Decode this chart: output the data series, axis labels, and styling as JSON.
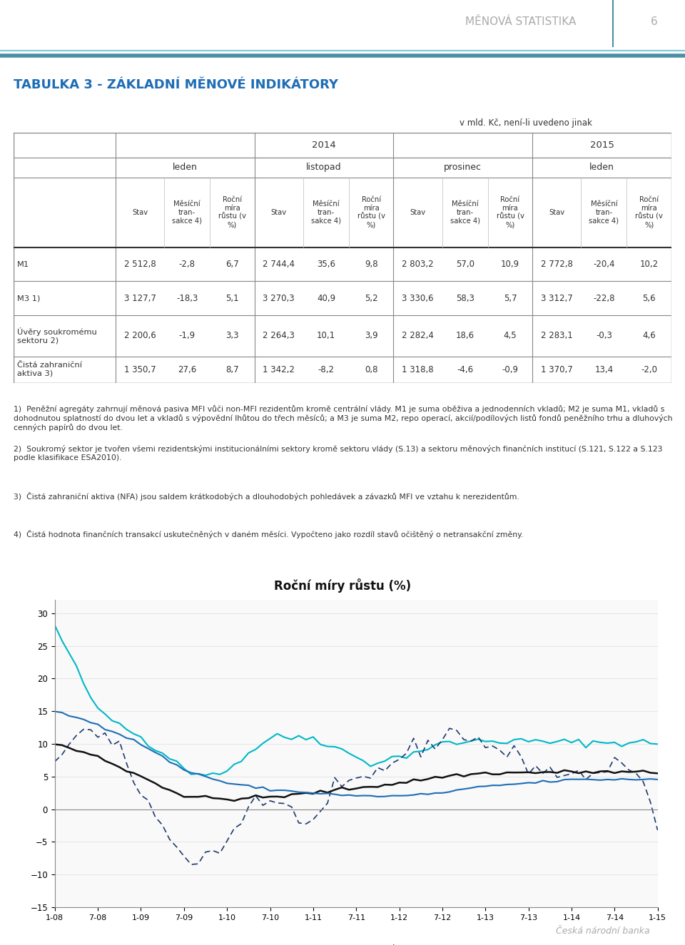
{
  "page_title": "MĚNOVÁ STATISTIKA",
  "page_number": "6",
  "table_title": "TABULKA 3 - ZÁKLADNÍ MĚNOVÉ INDIKÁTORY",
  "subtitle": "v mld. Kč, není-li uvedeno jinak",
  "rows": [
    [
      "M1",
      "2 512,8",
      "-2,8",
      "6,7",
      "2 744,4",
      "35,6",
      "9,8",
      "2 803,2",
      "57,0",
      "10,9",
      "2 772,8",
      "-20,4",
      "10,2"
    ],
    [
      "M3 1)",
      "3 127,7",
      "-18,3",
      "5,1",
      "3 270,3",
      "40,9",
      "5,2",
      "3 330,6",
      "58,3",
      "5,7",
      "3 312,7",
      "-22,8",
      "5,6"
    ],
    [
      "Úvěry soukromému\nsektoru 2)",
      "2 200,6",
      "-1,9",
      "3,3",
      "2 264,3",
      "10,1",
      "3,9",
      "2 282,4",
      "18,6",
      "4,5",
      "2 283,1",
      "-0,3",
      "4,6"
    ],
    [
      "Čistá zahraniční\naktiva 3)",
      "1 350,7",
      "27,6",
      "8,7",
      "1 342,2",
      "-8,2",
      "0,8",
      "1 318,8",
      "-4,6",
      "-0,9",
      "1 370,7",
      "13,4",
      "-2,0"
    ]
  ],
  "footnotes": [
    "1)  Peněžní agregáty zahrnují měnová pasiva MFI vůči non-MFI rezidentům kromě centrální vlády. M1 je suma oběživa a jednodenních vkladů; M2 je suma M1, vkladů s dohodnutou splatností do dvou let a vkladů s výpovědní lhůtou do třech měsíců; a M3 je suma M2, repo operací, akcií/podílových listů fondů peněžního trhu a dluhových cenných papírů do dvou let.",
    "2)  Soukromý sektor je tvořen všemi rezidentskými institucionálními sektory kromě sektoru vlády (S.13) a sektoru měnových finančních institucí (S.121, S.122 a S.123 podle klasifikace ESA2010).",
    "3)  Čistá zahraniční aktiva (NFA) jsou saldem krátkodobých a dlouhodobých pohledávek a závazků MFI ve vztahu k nerezidentům.",
    "4)  Čistá hodnota finančních transakcí uskutečněných v daném měsíci. Vypočteno jako rozdíl stavů očištěný o netransakční změny."
  ],
  "chart_title": "Roční míry růstu (%)",
  "chart_xticks": [
    "1-08",
    "7-08",
    "1-09",
    "7-09",
    "1-10",
    "7-10",
    "1-11",
    "7-11",
    "1-12",
    "7-12",
    "1-13",
    "7-13",
    "1-14",
    "7-14",
    "1-15"
  ],
  "bg_color": "#ffffff",
  "title_color": "#1e6db5",
  "page_title_color": "#aaaaaa",
  "footnote_color": "#333333",
  "top_bar_color1": "#7ec8d8",
  "top_bar_color2": "#4a90a4",
  "vertical_line_color": "#4a90a4",
  "m1_color": "#00b8c8",
  "nfa_color": "#1e3a6e",
  "m3_color": "#111111",
  "uvery_color": "#1e6db5"
}
